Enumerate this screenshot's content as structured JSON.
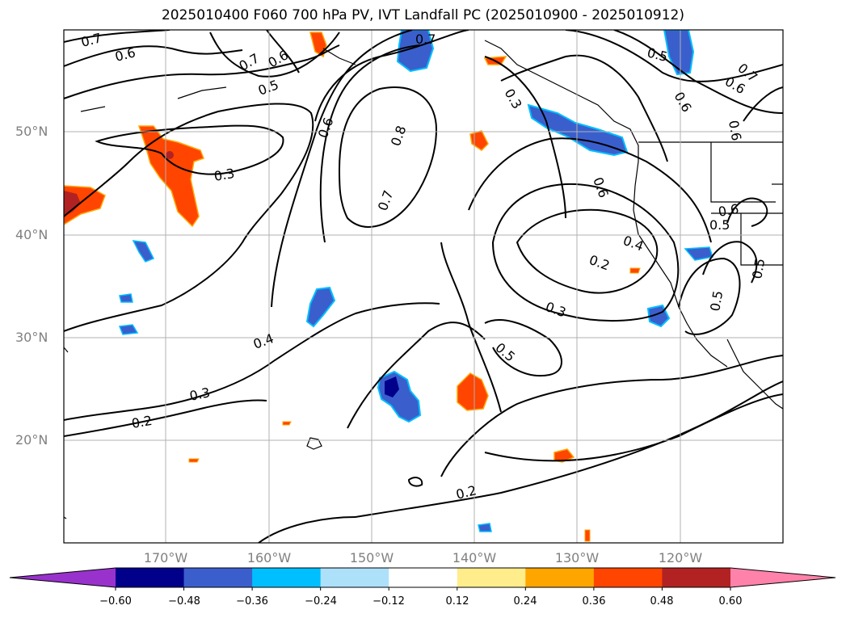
{
  "title": "2025010400 F060 700 hPa PV, IVT Landfall PC (2025010900 - 2025010912)",
  "axes": {
    "lat_labels": [
      "50°N",
      "40°N",
      "30°N",
      "20°N"
    ],
    "lon_labels": [
      "170°W",
      "160°W",
      "150°W",
      "140°W",
      "130°W",
      "120°W"
    ]
  },
  "colorbar": {
    "levels": [
      "−0.60",
      "−0.48",
      "−0.36",
      "−0.24",
      "−0.12",
      "0.12",
      "0.24",
      "0.36",
      "0.48",
      "0.60"
    ],
    "colors": [
      "#9932CC",
      "#00008B",
      "#3A5FCD",
      "#00BFFF",
      "#ADE1FA",
      "#FFFFFF",
      "#FFEC8B",
      "#FFA500",
      "#FF4500",
      "#B22222",
      "#FF82AB"
    ],
    "extend": "both"
  },
  "contour_labels": [
    "0.7",
    "0.6",
    "0.7",
    "0.6",
    "0.5",
    "0.7",
    "0.5",
    "0.7",
    "0.6",
    "0.6",
    "0.8",
    "0.3",
    "0.3",
    "0.7",
    "0.6",
    "0.6",
    "0.6",
    "0.6",
    "0.5",
    "0.4",
    "0.2",
    "0.5",
    "0.3",
    "0.4",
    "0.3",
    "0.5",
    "0.2",
    "0.2",
    "0.5"
  ],
  "colors": {
    "grid": "#b0b0b0",
    "contour": "#000000",
    "tick_label": "#808080"
  }
}
